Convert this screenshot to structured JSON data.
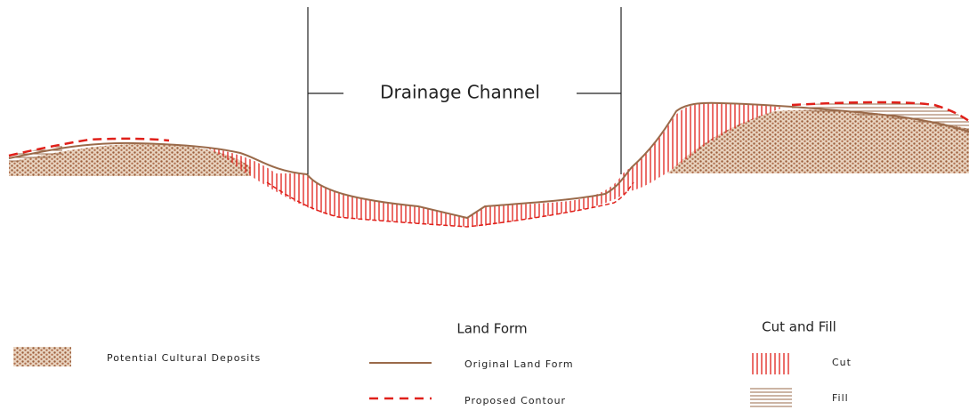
{
  "diagram": {
    "channel_label": "Drainage Channel"
  },
  "legend": {
    "deposits": "Potential Cultural Deposits",
    "land_form": {
      "title": "Land Form",
      "original": "Original Land Form",
      "proposed": "Proposed Contour"
    },
    "cut_fill": {
      "title": "Cut and Fill",
      "cut": "Cut",
      "fill": "Fill"
    }
  }
}
